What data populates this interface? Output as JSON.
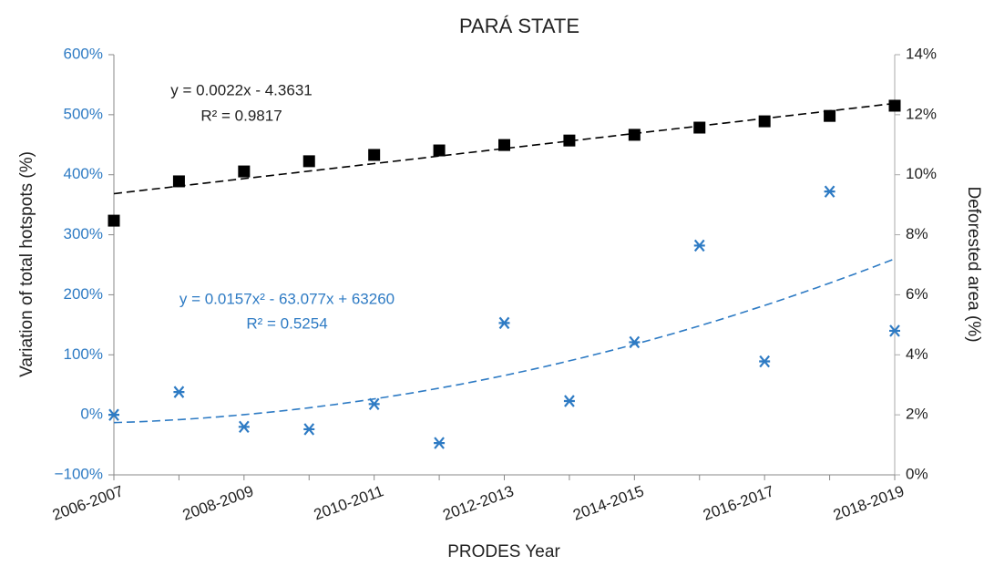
{
  "chart_data": {
    "type": "scatter",
    "title": "PARÁ STATE",
    "xlabel": "PRODES Year",
    "ylabel": "Variation of total hotspots (%)",
    "y2label": "Deforested area (%)",
    "categories": [
      "2006-2007",
      null,
      "2008-2009",
      null,
      "2010-2011",
      null,
      "2012-2013",
      null,
      "2014-2015",
      null,
      "2016-2017",
      null,
      "2018-2019"
    ],
    "series": [
      {
        "color": "#2e7bc4",
        "marker": "asterisk",
        "trendline": "polynomial",
        "values": [
          0,
          38,
          -20,
          -24,
          18,
          -47,
          153,
          23,
          121,
          282,
          89,
          372,
          140
        ]
      },
      {
        "color": "#000000",
        "marker": "square",
        "trendline": "linear",
        "axis": "y2",
        "values": [
          8.47,
          9.78,
          10.11,
          10.45,
          10.66,
          10.81,
          10.99,
          11.14,
          11.33,
          11.57,
          11.78,
          11.96,
          12.3
        ]
      }
    ],
    "annotations": [
      "y = 0.0157x² - 63.077x + 63260",
      "R² = 0.5254",
      "y = 0.0022x - 4.3631",
      "R² = 0.9817"
    ],
    "ylim": [
      -100,
      600
    ],
    "yticks": [
      {
        "value": -100,
        "label": "−100%"
      },
      {
        "value": 0,
        "label": "0%"
      },
      {
        "value": 100,
        "label": "100%"
      },
      {
        "value": 200,
        "label": "200%"
      },
      {
        "value": 300,
        "label": "300%"
      },
      {
        "value": 400,
        "label": "400%"
      },
      {
        "value": 500,
        "label": "500%"
      },
      {
        "value": 600,
        "label": "600%"
      }
    ],
    "y2lim": [
      0,
      14
    ],
    "y2ticks": [
      {
        "value": 0,
        "label": "0%"
      },
      {
        "value": 2,
        "label": "2%"
      },
      {
        "value": 4,
        "label": "4%"
      },
      {
        "value": 6,
        "label": "6%"
      },
      {
        "value": 8,
        "label": "8%"
      },
      {
        "value": 10,
        "label": "10%"
      },
      {
        "value": 12,
        "label": "12%"
      },
      {
        "value": 14,
        "label": "14%"
      }
    ]
  }
}
